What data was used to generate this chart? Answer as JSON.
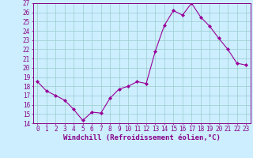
{
  "x": [
    0,
    1,
    2,
    3,
    4,
    5,
    6,
    7,
    8,
    9,
    10,
    11,
    12,
    13,
    14,
    15,
    16,
    17,
    18,
    19,
    20,
    21,
    22,
    23
  ],
  "y": [
    18.5,
    17.5,
    17.0,
    16.5,
    15.5,
    14.3,
    15.2,
    15.1,
    16.7,
    17.7,
    18.0,
    18.5,
    18.3,
    21.8,
    24.6,
    26.2,
    25.7,
    27.0,
    25.5,
    24.5,
    23.2,
    22.0,
    20.5,
    20.3
  ],
  "line_color": "#990099",
  "marker": "D",
  "marker_size": 2,
  "bg_color": "#cceeff",
  "grid_color": "#99cccc",
  "ylim": [
    14,
    27
  ],
  "xlim": [
    -0.5,
    23.5
  ],
  "yticks": [
    14,
    15,
    16,
    17,
    18,
    19,
    20,
    21,
    22,
    23,
    24,
    25,
    26,
    27
  ],
  "xticks": [
    0,
    1,
    2,
    3,
    4,
    5,
    6,
    7,
    8,
    9,
    10,
    11,
    12,
    13,
    14,
    15,
    16,
    17,
    18,
    19,
    20,
    21,
    22,
    23
  ],
  "xlabel": "Windchill (Refroidissement éolien,°C)",
  "tick_fontsize": 5.5,
  "label_fontsize": 6.5,
  "tick_color": "#880088",
  "spine_color": "#880088"
}
